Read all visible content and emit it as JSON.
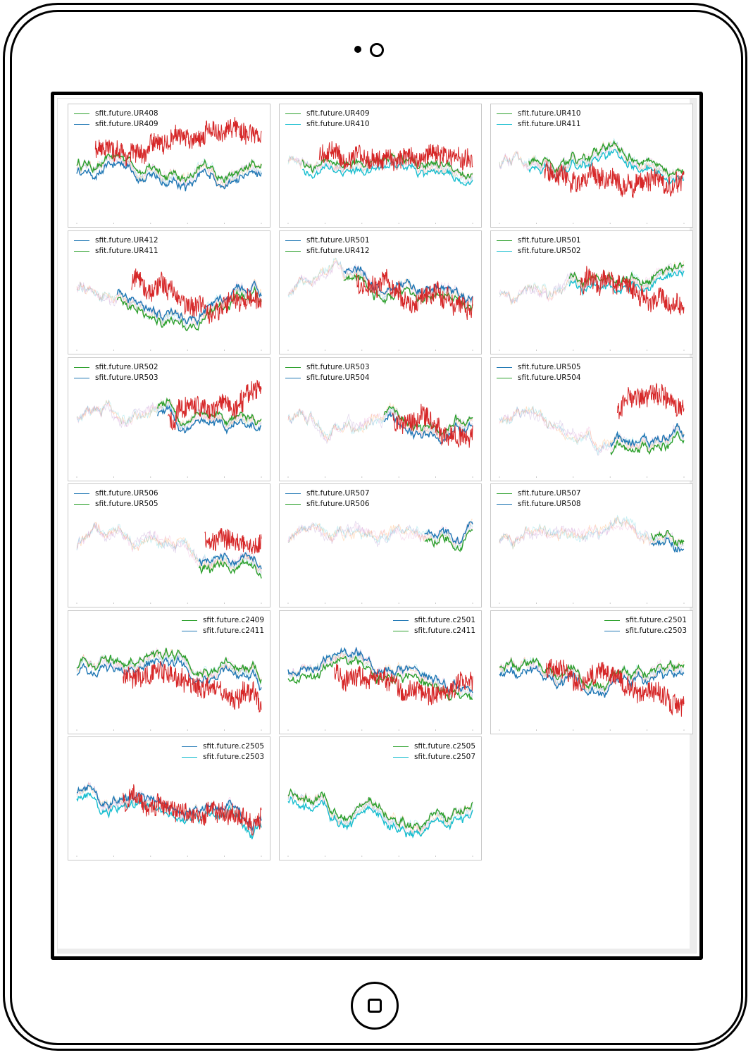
{
  "device": {
    "type": "tablet",
    "camera_icon": "camera-icon",
    "home_icon": "home-button-icon"
  },
  "colors": {
    "blue": "#1f77b4",
    "green": "#2ca02c",
    "red": "#d62728",
    "orange": "#ff7f0e",
    "purple": "#9467bd",
    "pink": "#e377c2",
    "cyan": "#17becf"
  },
  "panels": [
    {
      "legend": [
        "sfit.future.UR408",
        "sfit.future.UR409"
      ],
      "legend_colors": [
        "#2ca02c",
        "#1f77b4"
      ],
      "legend_pos": "top-left",
      "family": "UR"
    },
    {
      "legend": [
        "sfit.future.UR409",
        "sfit.future.UR410"
      ],
      "legend_colors": [
        "#2ca02c",
        "#17becf"
      ],
      "legend_pos": "top-left",
      "family": "UR"
    },
    {
      "legend": [
        "sfit.future.UR410",
        "sfit.future.UR411"
      ],
      "legend_colors": [
        "#2ca02c",
        "#17becf"
      ],
      "legend_pos": "top-left",
      "family": "UR"
    },
    {
      "legend": [
        "sfit.future.UR412",
        "sfit.future.UR411"
      ],
      "legend_colors": [
        "#1f77b4",
        "#2ca02c"
      ],
      "legend_pos": "top-left",
      "family": "UR"
    },
    {
      "legend": [
        "sfit.future.UR501",
        "sfit.future.UR412"
      ],
      "legend_colors": [
        "#1f77b4",
        "#2ca02c"
      ],
      "legend_pos": "top-left",
      "family": "UR"
    },
    {
      "legend": [
        "sfit.future.UR501",
        "sfit.future.UR502"
      ],
      "legend_colors": [
        "#2ca02c",
        "#17becf"
      ],
      "legend_pos": "top-left",
      "family": "UR"
    },
    {
      "legend": [
        "sfit.future.UR502",
        "sfit.future.UR503"
      ],
      "legend_colors": [
        "#2ca02c",
        "#1f77b4"
      ],
      "legend_pos": "top-left",
      "family": "UR"
    },
    {
      "legend": [
        "sfit.future.UR503",
        "sfit.future.UR504"
      ],
      "legend_colors": [
        "#2ca02c",
        "#1f77b4"
      ],
      "legend_pos": "top-left",
      "family": "UR"
    },
    {
      "legend": [
        "sfit.future.UR505",
        "sfit.future.UR504"
      ],
      "legend_colors": [
        "#1f77b4",
        "#2ca02c"
      ],
      "legend_pos": "top-left",
      "family": "UR"
    },
    {
      "legend": [
        "sfit.future.UR506",
        "sfit.future.UR505"
      ],
      "legend_colors": [
        "#1f77b4",
        "#2ca02c"
      ],
      "legend_pos": "top-left",
      "family": "UR"
    },
    {
      "legend": [
        "sfit.future.UR507",
        "sfit.future.UR506"
      ],
      "legend_colors": [
        "#1f77b4",
        "#2ca02c"
      ],
      "legend_pos": "top-left",
      "family": "UR"
    },
    {
      "legend": [
        "sfit.future.UR507",
        "sfit.future.UR508"
      ],
      "legend_colors": [
        "#2ca02c",
        "#1f77b4"
      ],
      "legend_pos": "top-left",
      "family": "UR"
    },
    {
      "legend": [
        "sfit.future.c2409",
        "sfit.future.c2411"
      ],
      "legend_colors": [
        "#2ca02c",
        "#1f77b4"
      ],
      "legend_pos": "top-right",
      "family": "c"
    },
    {
      "legend": [
        "sfit.future.c2501",
        "sfit.future.c2411"
      ],
      "legend_colors": [
        "#1f77b4",
        "#2ca02c"
      ],
      "legend_pos": "top-right",
      "family": "c"
    },
    {
      "legend": [
        "sfit.future.c2501",
        "sfit.future.c2503"
      ],
      "legend_colors": [
        "#2ca02c",
        "#1f77b4"
      ],
      "legend_pos": "top-right",
      "family": "c"
    },
    {
      "legend": [
        "sfit.future.c2505",
        "sfit.future.c2503"
      ],
      "legend_colors": [
        "#1f77b4",
        "#17becf"
      ],
      "legend_pos": "top-right",
      "family": "c"
    },
    {
      "legend": [
        "sfit.future.c2505",
        "sfit.future.c2507"
      ],
      "legend_colors": [
        "#2ca02c",
        "#17becf"
      ],
      "legend_pos": "top-right",
      "family": "c"
    }
  ]
}
